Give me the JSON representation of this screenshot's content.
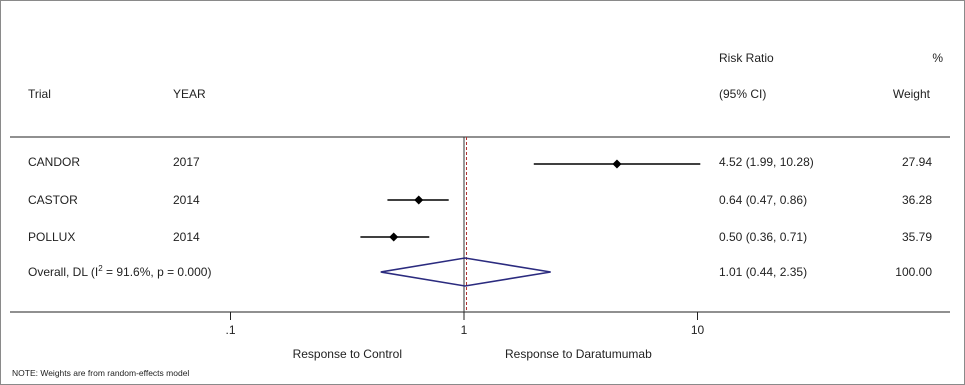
{
  "chart_data": {
    "type": "forest",
    "headers": {
      "trial": "Trial",
      "year": "YEAR",
      "effect_top": "Risk Ratio",
      "effect_bottom": "(95% CI)",
      "weight_top": "%",
      "weight_bottom": "Weight"
    },
    "studies": [
      {
        "trial": "CANDOR",
        "year": "2017",
        "rr": 4.52,
        "lo": 1.99,
        "hi": 10.28,
        "ci_text": "4.52 (1.99, 10.28)",
        "weight": "27.94"
      },
      {
        "trial": "CASTOR",
        "year": "2014",
        "rr": 0.64,
        "lo": 0.47,
        "hi": 0.86,
        "ci_text": "0.64 (0.47, 0.86)",
        "weight": "36.28"
      },
      {
        "trial": "POLLUX",
        "year": "2014",
        "rr": 0.5,
        "lo": 0.36,
        "hi": 0.71,
        "ci_text": "0.50 (0.36, 0.71)",
        "weight": "35.79"
      }
    ],
    "overall": {
      "label": "Overall, DL (I",
      "sup": "2",
      "label_rest": " = 91.6%, p = 0.000)",
      "rr": 1.01,
      "lo": 0.44,
      "hi": 2.35,
      "ci_text": "1.01 (0.44, 2.35)",
      "weight": "100.00"
    },
    "x_scale": "log",
    "xlim": [
      0.1,
      10
    ],
    "x_ticks": [
      {
        "value": 0.1,
        "label": ".1"
      },
      {
        "value": 1,
        "label": "1"
      },
      {
        "value": 10,
        "label": "10"
      }
    ],
    "null_value": 1,
    "xlabel_left": "Response to Control",
    "xlabel_right": "Response to Daratumumab",
    "note": "NOTE: Weights are from random-effects model",
    "colors": {
      "diamond": "#2b2b7f",
      "null_line": "#333333",
      "overall_line": "#b03030",
      "marker": "#000000"
    }
  }
}
